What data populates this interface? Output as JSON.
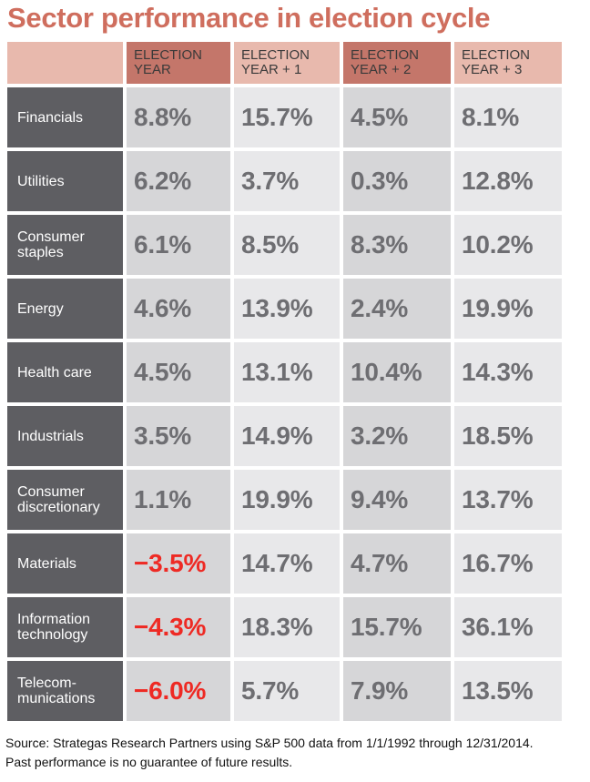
{
  "title": "Sector performance in election cycle",
  "colors": {
    "title": "#cf6e5e",
    "header_light": "#e8b9ad",
    "header_dark": "#c4766a",
    "row_label_bg": "#5e5e62",
    "cell_dark": "#d6d6d8",
    "cell_light": "#e8e8ea",
    "value_text": "#6e6e72",
    "negative_value": "#ee2a24"
  },
  "chart_data": {
    "type": "table",
    "title": "Sector performance in election cycle",
    "columns": [
      "ELECTION YEAR",
      "ELECTION YEAR + 1",
      "ELECTION YEAR + 2",
      "ELECTION YEAR + 3"
    ],
    "column_lines": [
      [
        "ELECTION",
        "YEAR"
      ],
      [
        "ELECTION",
        "YEAR + 1"
      ],
      [
        "ELECTION",
        "YEAR + 2"
      ],
      [
        "ELECTION",
        "YEAR + 3"
      ]
    ],
    "rows": [
      {
        "label": "Financials",
        "label_lines": [
          "Financials"
        ],
        "values": [
          8.8,
          15.7,
          4.5,
          8.1
        ],
        "display": [
          "8.8%",
          "15.7%",
          "4.5%",
          "8.1%"
        ]
      },
      {
        "label": "Utilities",
        "label_lines": [
          "Utilities"
        ],
        "values": [
          6.2,
          3.7,
          0.3,
          12.8
        ],
        "display": [
          "6.2%",
          "3.7%",
          "0.3%",
          "12.8%"
        ]
      },
      {
        "label": "Consumer staples",
        "label_lines": [
          "Consumer",
          "staples"
        ],
        "values": [
          6.1,
          8.5,
          8.3,
          10.2
        ],
        "display": [
          "6.1%",
          "8.5%",
          "8.3%",
          "10.2%"
        ]
      },
      {
        "label": "Energy",
        "label_lines": [
          "Energy"
        ],
        "values": [
          4.6,
          13.9,
          2.4,
          19.9
        ],
        "display": [
          "4.6%",
          "13.9%",
          "2.4%",
          "19.9%"
        ]
      },
      {
        "label": "Health care",
        "label_lines": [
          "Health care"
        ],
        "values": [
          4.5,
          13.1,
          10.4,
          14.3
        ],
        "display": [
          "4.5%",
          "13.1%",
          "10.4%",
          "14.3%"
        ]
      },
      {
        "label": "Industrials",
        "label_lines": [
          "Industrials"
        ],
        "values": [
          3.5,
          14.9,
          3.2,
          18.5
        ],
        "display": [
          "3.5%",
          "14.9%",
          "3.2%",
          "18.5%"
        ]
      },
      {
        "label": "Consumer discretionary",
        "label_lines": [
          "Consumer",
          "discretionary"
        ],
        "values": [
          1.1,
          19.9,
          9.4,
          13.7
        ],
        "display": [
          "1.1%",
          "19.9%",
          "9.4%",
          "13.7%"
        ]
      },
      {
        "label": "Materials",
        "label_lines": [
          "Materials"
        ],
        "values": [
          -3.5,
          14.7,
          4.7,
          16.7
        ],
        "display": [
          "−3.5%",
          "14.7%",
          "4.7%",
          "16.7%"
        ]
      },
      {
        "label": "Information technology",
        "label_lines": [
          "Information",
          "technology"
        ],
        "values": [
          -4.3,
          18.3,
          15.7,
          36.1
        ],
        "display": [
          "−4.3%",
          "18.3%",
          "15.7%",
          "36.1%"
        ]
      },
      {
        "label": "Telecommunications",
        "label_lines": [
          "Telecom-",
          "munications"
        ],
        "values": [
          -6.0,
          5.7,
          7.9,
          13.5
        ],
        "display": [
          "−6.0%",
          "5.7%",
          "7.9%",
          "13.5%"
        ]
      }
    ]
  },
  "footer": {
    "source_line1": "Source: Strategas Research Partners using S&P 500 data from 1/1/1992 through 12/31/2014.",
    "source_line2": "Past performance is no guarantee of future results."
  }
}
